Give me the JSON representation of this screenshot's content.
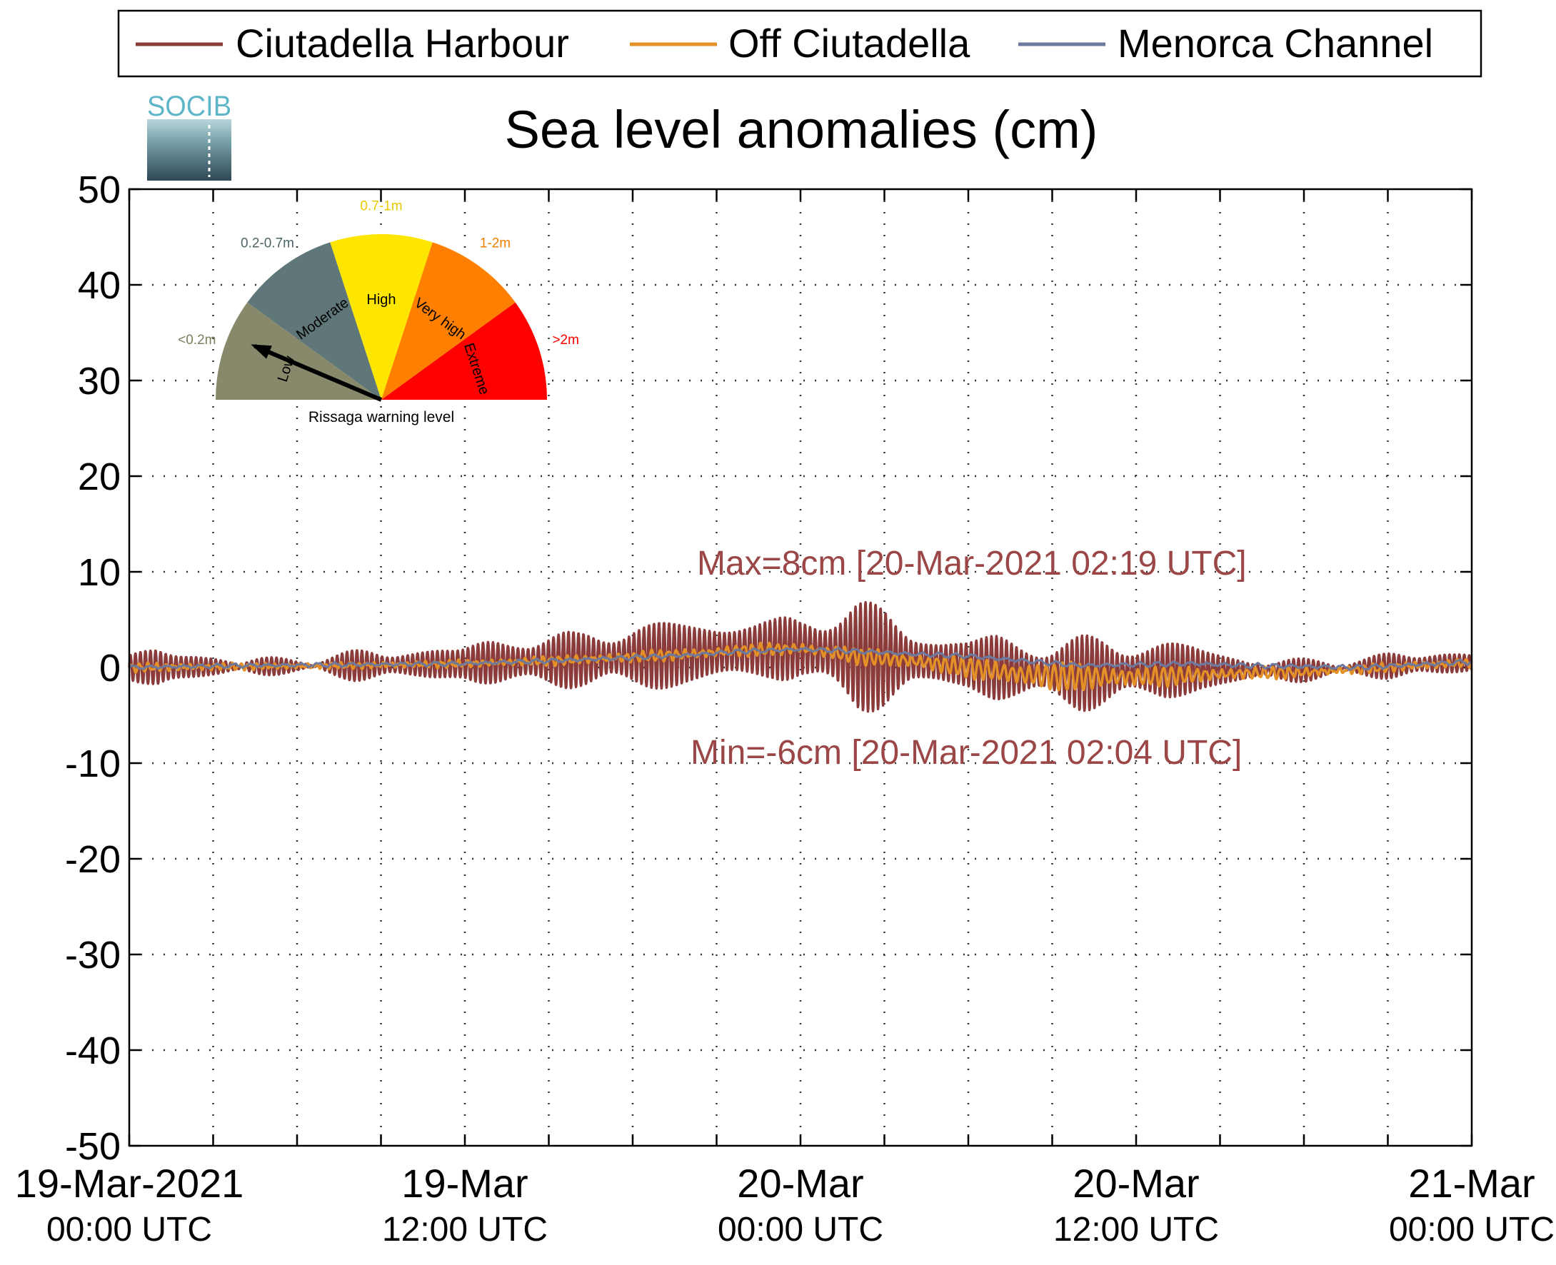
{
  "chart_data": {
    "type": "line",
    "title": "Sea level anomalies (cm)",
    "xlabel": "",
    "ylabel": "",
    "ylim": [
      -50,
      50
    ],
    "yticks": [
      50,
      40,
      30,
      20,
      10,
      0,
      -10,
      -20,
      -30,
      -40,
      -50
    ],
    "xlim_hours": [
      0,
      48
    ],
    "x_start": "19-Mar-2021 00:00 UTC",
    "x_end": "21-Mar-2021 00:00 UTC",
    "x_major_ticks": [
      {
        "hour": 0,
        "line1": "19-Mar-2021",
        "line2": "00:00 UTC"
      },
      {
        "hour": 12,
        "line1": "19-Mar",
        "line2": "12:00 UTC"
      },
      {
        "hour": 24,
        "line1": "20-Mar",
        "line2": "00:00 UTC"
      },
      {
        "hour": 36,
        "line1": "20-Mar",
        "line2": "12:00 UTC"
      },
      {
        "hour": 48,
        "line1": "21-Mar",
        "line2": "00:00 UTC"
      }
    ],
    "x_minor_tick_hours": [
      3,
      6,
      9,
      15,
      18,
      21,
      27,
      30,
      33,
      39,
      42,
      45
    ],
    "grid": true,
    "legend_position": "top",
    "series": [
      {
        "name": "Ciutadella Harbour",
        "color": "#8c3b3b",
        "baseline": [
          [
            0,
            0
          ],
          [
            4,
            0.1
          ],
          [
            8,
            0.2
          ],
          [
            12,
            0.4
          ],
          [
            16,
            0.8
          ],
          [
            20,
            1.4
          ],
          [
            22,
            1.8
          ],
          [
            24,
            2
          ],
          [
            26,
            1.2
          ],
          [
            28,
            0.8
          ],
          [
            30,
            0.3
          ],
          [
            32,
            -0.4
          ],
          [
            34,
            -0.6
          ],
          [
            36,
            -0.4
          ],
          [
            38,
            -0.2
          ],
          [
            40,
            -0.3
          ],
          [
            42,
            -0.3
          ],
          [
            44,
            0
          ],
          [
            46,
            0.3
          ],
          [
            48,
            0.5
          ]
        ],
        "envelope": [
          [
            0,
            1.2
          ],
          [
            1,
            2.0
          ],
          [
            2,
            1.4
          ],
          [
            4,
            0.7
          ],
          [
            6,
            0.6
          ],
          [
            8,
            1.3
          ],
          [
            10,
            1.6
          ],
          [
            12,
            1.8
          ],
          [
            13,
            2.5
          ],
          [
            14,
            3.0
          ],
          [
            15,
            2.6
          ],
          [
            16,
            2.6
          ],
          [
            17,
            3.3
          ],
          [
            18,
            3.8
          ],
          [
            19,
            3.6
          ],
          [
            20,
            3.5
          ],
          [
            21,
            3.3
          ],
          [
            22,
            3.6
          ],
          [
            23,
            3.0
          ],
          [
            24,
            3.2
          ],
          [
            25,
            5.2
          ],
          [
            26,
            6.2
          ],
          [
            27,
            5.0
          ],
          [
            28,
            3.2
          ],
          [
            29,
            2.6
          ],
          [
            30,
            2.8
          ],
          [
            31,
            3.5
          ],
          [
            32,
            3.4
          ],
          [
            33,
            3.2
          ],
          [
            34,
            3.6
          ],
          [
            35,
            3.6
          ],
          [
            36,
            3.3
          ],
          [
            37,
            3.2
          ],
          [
            38,
            2.7
          ],
          [
            39,
            1.8
          ],
          [
            40,
            1.2
          ],
          [
            41,
            1.0
          ],
          [
            42,
            0.9
          ],
          [
            43,
            0.9
          ],
          [
            44,
            0.8
          ],
          [
            45,
            1.1
          ],
          [
            46,
            1.2
          ],
          [
            47,
            1.2
          ],
          [
            48,
            1.0
          ]
        ],
        "max_label": "Max=8cm [20-Mar-2021 02:19 UTC]",
        "min_label": "Min=-6cm [20-Mar-2021 02:04 UTC]"
      },
      {
        "name": "Off Ciutadella",
        "color": "#e39126",
        "baseline": [
          [
            0,
            0
          ],
          [
            4,
            0.1
          ],
          [
            8,
            0.2
          ],
          [
            12,
            0.4
          ],
          [
            16,
            0.8
          ],
          [
            20,
            1.4
          ],
          [
            22,
            1.8
          ],
          [
            24,
            2
          ],
          [
            26,
            1.2
          ],
          [
            28,
            0.7
          ],
          [
            30,
            0
          ],
          [
            32,
            -0.8
          ],
          [
            34,
            -1
          ],
          [
            36,
            -1
          ],
          [
            38,
            -0.8
          ],
          [
            40,
            -0.6
          ],
          [
            42,
            -0.5
          ],
          [
            44,
            -0.2
          ],
          [
            46,
            0.2
          ],
          [
            48,
            0.5
          ]
        ],
        "envelope": [
          [
            0,
            0.4
          ],
          [
            6,
            0.2
          ],
          [
            12,
            0.3
          ],
          [
            18,
            0.5
          ],
          [
            24,
            0.6
          ],
          [
            26,
            0.8
          ],
          [
            28,
            0.9
          ],
          [
            30,
            1.0
          ],
          [
            32,
            1.5
          ],
          [
            34,
            1.4
          ],
          [
            36,
            1.2
          ],
          [
            38,
            0.8
          ],
          [
            40,
            0.6
          ],
          [
            44,
            0.4
          ],
          [
            48,
            0.4
          ]
        ]
      },
      {
        "name": "Menorca Channel",
        "color": "#6c7aa0",
        "baseline": [
          [
            0,
            0
          ],
          [
            4,
            0.2
          ],
          [
            8,
            0.3
          ],
          [
            12,
            0.4
          ],
          [
            16,
            0.8
          ],
          [
            20,
            1.3
          ],
          [
            22,
            1.7
          ],
          [
            24,
            1.9
          ],
          [
            26,
            1.7
          ],
          [
            28,
            1.4
          ],
          [
            30,
            1.2
          ],
          [
            32,
            0.7
          ],
          [
            34,
            0.2
          ],
          [
            36,
            0.3
          ],
          [
            38,
            0.4
          ],
          [
            40,
            0.2
          ],
          [
            42,
            0.1
          ],
          [
            44,
            0
          ],
          [
            46,
            0.3
          ],
          [
            48,
            0.6
          ]
        ],
        "envelope": [
          [
            0,
            0.2
          ],
          [
            48,
            0.25
          ]
        ]
      }
    ]
  },
  "legend": {
    "items": [
      {
        "label": "Ciutadella Harbour",
        "color": "#8c3b3b"
      },
      {
        "label": "Off Ciutadella",
        "color": "#e39126"
      },
      {
        "label": "Menorca Channel",
        "color": "#6c7aa0"
      }
    ]
  },
  "logo": {
    "text": "SOCIB"
  },
  "gauge": {
    "caption": "Rissaga warning level",
    "needle_level": "Low",
    "segments": [
      {
        "name": "Low",
        "range": "<0.2m",
        "color": "#87896a",
        "range_color": "#7d7f5e"
      },
      {
        "name": "Moderate",
        "range": "0.2-0.7m",
        "color": "#5f7778",
        "range_color": "#4d6467"
      },
      {
        "name": "High",
        "range": "0.7-1m",
        "color": "#ffe600",
        "range_color": "#e8c800"
      },
      {
        "name": "Very high",
        "range": "1-2m",
        "color": "#ff8000",
        "range_color": "#f08000"
      },
      {
        "name": "Extreme",
        "range": ">2m",
        "color": "#ff0000",
        "range_color": "#ff0000"
      }
    ]
  }
}
